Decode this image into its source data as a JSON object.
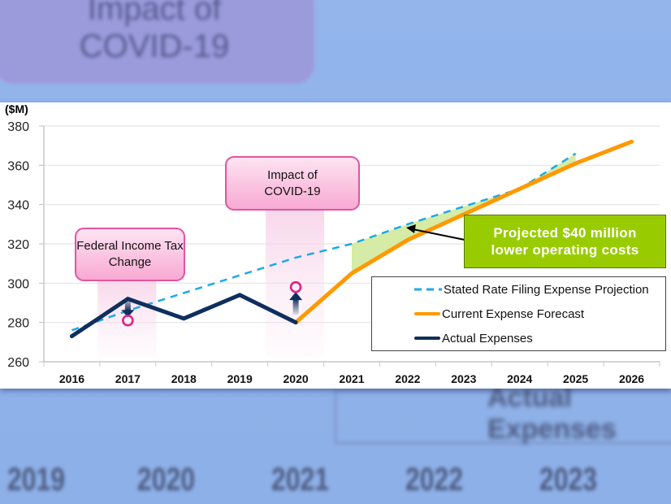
{
  "background": {
    "blurred_callout": "Impact of COVID-19",
    "blurred_years": [
      "2019",
      "2020",
      "2021",
      "2022",
      "2023"
    ],
    "blurred_legend_text": "Actual Expenses"
  },
  "colors": {
    "projection": "#1ca9e6",
    "forecast": "#ff9900",
    "actual": "#0f2f5c",
    "savings_fill": "#d6eba5",
    "callout_border": "#e2559f",
    "marker": "#e0208a",
    "green_box": "#99cc00"
  },
  "chart_data": {
    "type": "line",
    "title": "",
    "xlabel": "",
    "ylabel": "($M)",
    "ylim": [
      260,
      380
    ],
    "yticks": [
      260,
      280,
      300,
      320,
      340,
      360,
      380
    ],
    "grid": true,
    "categories": [
      "2016",
      "2017",
      "2018",
      "2019",
      "2020",
      "2021",
      "2022",
      "2023",
      "2024",
      "2025",
      "2026"
    ],
    "series": [
      {
        "name": "Stated Rate Filing Expense Projection",
        "style": "dashed",
        "x": [
          "2016",
          "2017",
          "2018",
          "2019",
          "2020",
          "2021",
          "2022",
          "2023",
          "2024",
          "2025"
        ],
        "values": [
          276,
          286,
          295,
          304,
          313,
          320,
          330,
          339,
          348,
          366
        ]
      },
      {
        "name": "Current Expense Forecast",
        "style": "solid",
        "x": [
          "2020",
          "2021",
          "2022",
          "2023",
          "2024",
          "2025",
          "2026"
        ],
        "values": [
          280,
          305,
          322,
          335,
          348,
          361,
          372
        ]
      },
      {
        "name": "Actual Expenses",
        "style": "solid",
        "x": [
          "2016",
          "2017",
          "2018",
          "2019",
          "2020"
        ],
        "values": [
          273,
          292,
          282,
          294,
          280
        ]
      }
    ],
    "annotations": [
      {
        "text": "Federal Income Tax Change",
        "x": "2017",
        "marker_value": 281,
        "direction": "down"
      },
      {
        "text": "Impact of COVID-19",
        "x": "2020",
        "marker_value": 298,
        "direction": "up"
      },
      {
        "text": "Projected $40 million lower operating costs",
        "target": "gap between projection and forecast 2021-2025"
      }
    ],
    "legend_position": "bottom-right"
  },
  "labels": {
    "unit": "($M)",
    "callout_tax": "Federal Income Tax Change",
    "callout_covid": "Impact of COVID-19",
    "savings": "Projected $40 million lower operating costs",
    "legend": [
      "Stated Rate Filing Expense Projection",
      "Current Expense Forecast",
      "Actual Expenses"
    ]
  }
}
